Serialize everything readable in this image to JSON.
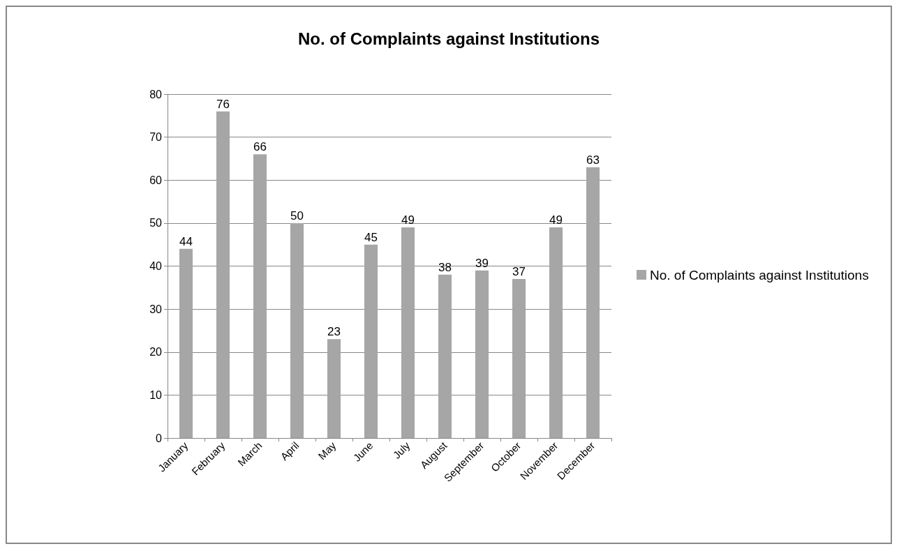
{
  "chart_data": {
    "type": "bar",
    "title": "No. of Complaints against Institutions",
    "categories": [
      "January",
      "February",
      "March",
      "April",
      "May",
      "June",
      "July",
      "August",
      "September",
      "October",
      "November",
      "December"
    ],
    "series": [
      {
        "name": "No. of Complaints against Institutions",
        "color": "#a6a6a6",
        "values": [
          44,
          76,
          66,
          50,
          23,
          45,
          49,
          38,
          39,
          37,
          49,
          63
        ]
      }
    ],
    "ylim": [
      0,
      80
    ],
    "yticks": [
      0,
      10,
      20,
      30,
      40,
      50,
      60,
      70,
      80
    ],
    "grid": "y",
    "legend": "right",
    "data_labels": true
  }
}
